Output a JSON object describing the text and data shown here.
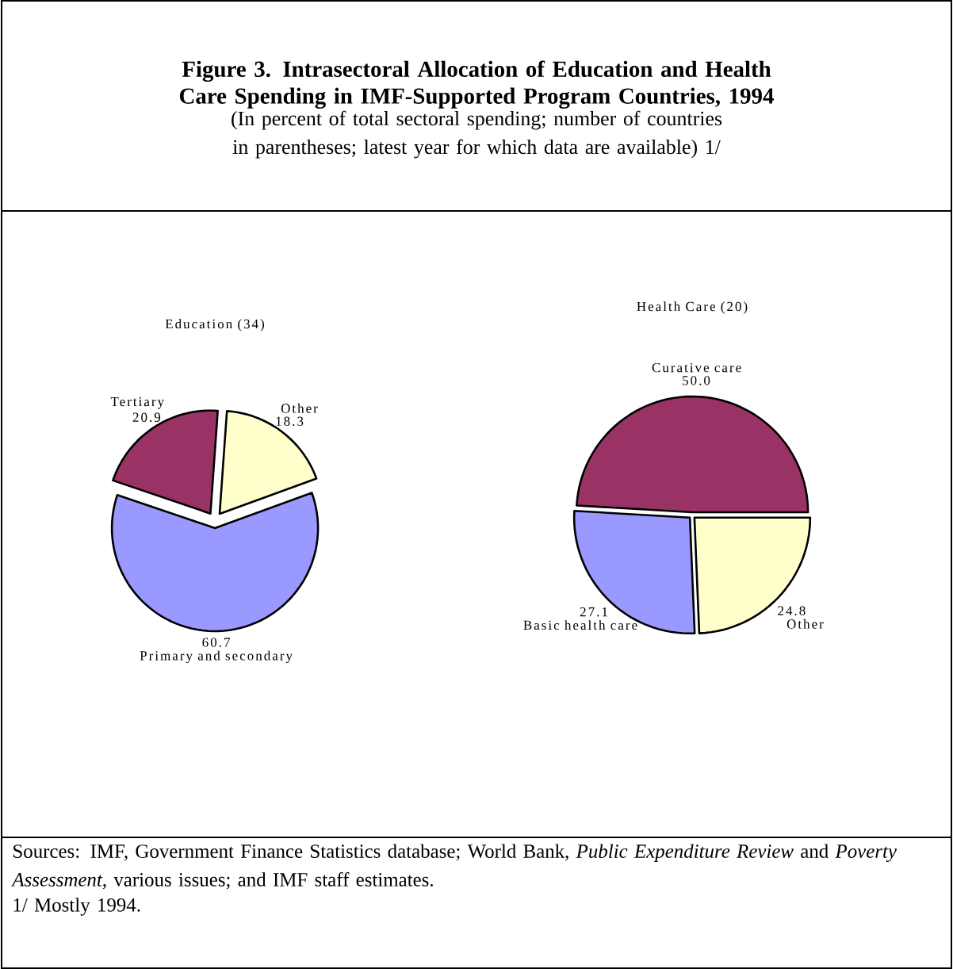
{
  "chart_data": [
    {
      "type": "other",
      "title": "Figure 3. Intrasectoral Allocation of Education and Health Care Spending in IMF-Supported Program Countries, 1994",
      "subtitle": "(In percent of total sectoral spending; number of countries in parentheses; latest year for which data are available) 1/",
      "annotations": [
        "Sources: IMF, Government Finance Statistics database; World Bank, *Public Expenditure Review* and *Poverty Assessment*, various issues; and IMF staff estimates.",
        "1/ Mostly 1994."
      ]
    },
    {
      "type": "pie",
      "title": "Education (34)",
      "categories": [
        "Other",
        "Tertiary",
        "Primary and secondary"
      ],
      "values": [
        18.3,
        20.9,
        60.7
      ],
      "colors": [
        "#ffffcc",
        "#993366",
        "#9999ff"
      ],
      "data_labels": true
    },
    {
      "type": "pie",
      "title": "Health Care (20)",
      "categories": [
        "Curative care",
        "Basic health care",
        "Other"
      ],
      "values": [
        50.0,
        27.1,
        24.8
      ],
      "colors": [
        "#993366",
        "#9999ff",
        "#ffffcc"
      ],
      "value_labels": [
        "50.0",
        "27.1",
        "24.8"
      ]
    }
  ]
}
